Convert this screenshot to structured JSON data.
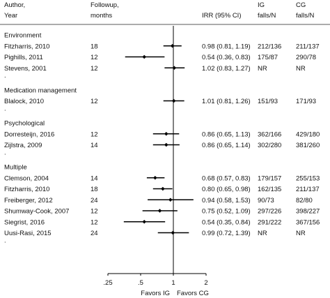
{
  "chart_data": {
    "type": "forest",
    "title": "",
    "scale": "log",
    "x_ticks": [
      {
        "value": 0.25,
        "label": ".25"
      },
      {
        "value": 0.5,
        "label": ".5"
      },
      {
        "value": 1,
        "label": "1"
      },
      {
        "value": 2,
        "label": "2"
      }
    ],
    "xlim": [
      0.2,
      2.6
    ],
    "reference_line": 1,
    "favors_left": "Favors IG",
    "favors_right": "Favors CG",
    "headers": {
      "author": [
        "Author,",
        "Year"
      ],
      "followup": [
        "Followup,",
        "months"
      ],
      "irr": [
        "",
        "IRR (95% CI)"
      ],
      "ig": [
        "IG",
        "falls/N"
      ],
      "cg": [
        "CG",
        "falls/N"
      ]
    },
    "groups": [
      {
        "label": "Environment",
        "studies": [
          {
            "author": "Fitzharris, 2010",
            "followup": "18",
            "irr": 0.98,
            "lo": 0.81,
            "hi": 1.19,
            "irr_text": "0.98 (0.81, 1.19)",
            "ig": "212/136",
            "cg": "211/137"
          },
          {
            "author": "Pighills, 2011",
            "followup": "12",
            "irr": 0.54,
            "lo": 0.36,
            "hi": 0.83,
            "irr_text": "0.54 (0.36, 0.83)",
            "ig": "175/87",
            "cg": "290/78"
          },
          {
            "author": "Stevens, 2001",
            "followup": "12",
            "irr": 1.02,
            "lo": 0.83,
            "hi": 1.27,
            "irr_text": "1.02 (0.83, 1.27)",
            "ig": "NR",
            "cg": "NR"
          }
        ]
      },
      {
        "label": "Medication management",
        "studies": [
          {
            "author": "Blalock, 2010",
            "followup": "12",
            "irr": 1.01,
            "lo": 0.81,
            "hi": 1.26,
            "irr_text": "1.01 (0.81, 1.26)",
            "ig": "151/93",
            "cg": "171/93"
          }
        ]
      },
      {
        "label": "Psychological",
        "studies": [
          {
            "author": "Dorresteijn, 2016",
            "followup": "12",
            "irr": 0.86,
            "lo": 0.65,
            "hi": 1.13,
            "irr_text": "0.86 (0.65, 1.13)",
            "ig": "362/166",
            "cg": "429/180"
          },
          {
            "author": "Zijlstra, 2009",
            "followup": "14",
            "irr": 0.86,
            "lo": 0.65,
            "hi": 1.14,
            "irr_text": "0.86 (0.65, 1.14)",
            "ig": "302/280",
            "cg": "381/260"
          }
        ]
      },
      {
        "label": "Multiple",
        "studies": [
          {
            "author": "Clemson, 2004",
            "followup": "14",
            "irr": 0.68,
            "lo": 0.57,
            "hi": 0.83,
            "irr_text": "0.68 (0.57, 0.83)",
            "ig": "179/157",
            "cg": "255/153"
          },
          {
            "author": "Fitzharris, 2010",
            "followup": "18",
            "irr": 0.8,
            "lo": 0.65,
            "hi": 0.98,
            "irr_text": "0.80 (0.65, 0.98)",
            "ig": "162/135",
            "cg": "211/137"
          },
          {
            "author": "Freiberger, 2012",
            "followup": "24",
            "irr": 0.94,
            "lo": 0.58,
            "hi": 1.53,
            "irr_text": "0.94 (0.58, 1.53)",
            "ig": "90/73",
            "cg": "82/80"
          },
          {
            "author": "Shumway-Cook, 2007",
            "followup": "12",
            "irr": 0.75,
            "lo": 0.52,
            "hi": 1.09,
            "irr_text": "0.75 (0.52, 1.09)",
            "ig": "297/226",
            "cg": "398/227"
          },
          {
            "author": "Siegrist, 2016",
            "followup": "12",
            "irr": 0.54,
            "lo": 0.35,
            "hi": 0.84,
            "irr_text": "0.54 (0.35, 0.84)",
            "ig": "291/222",
            "cg": "367/156"
          },
          {
            "author": "Uusi-Rasi, 2015",
            "followup": "24",
            "irr": 0.99,
            "lo": 0.72,
            "hi": 1.39,
            "irr_text": "0.99 (0.72, 1.39)",
            "ig": "NR",
            "cg": "NR"
          }
        ]
      }
    ],
    "separator_mark": "."
  }
}
